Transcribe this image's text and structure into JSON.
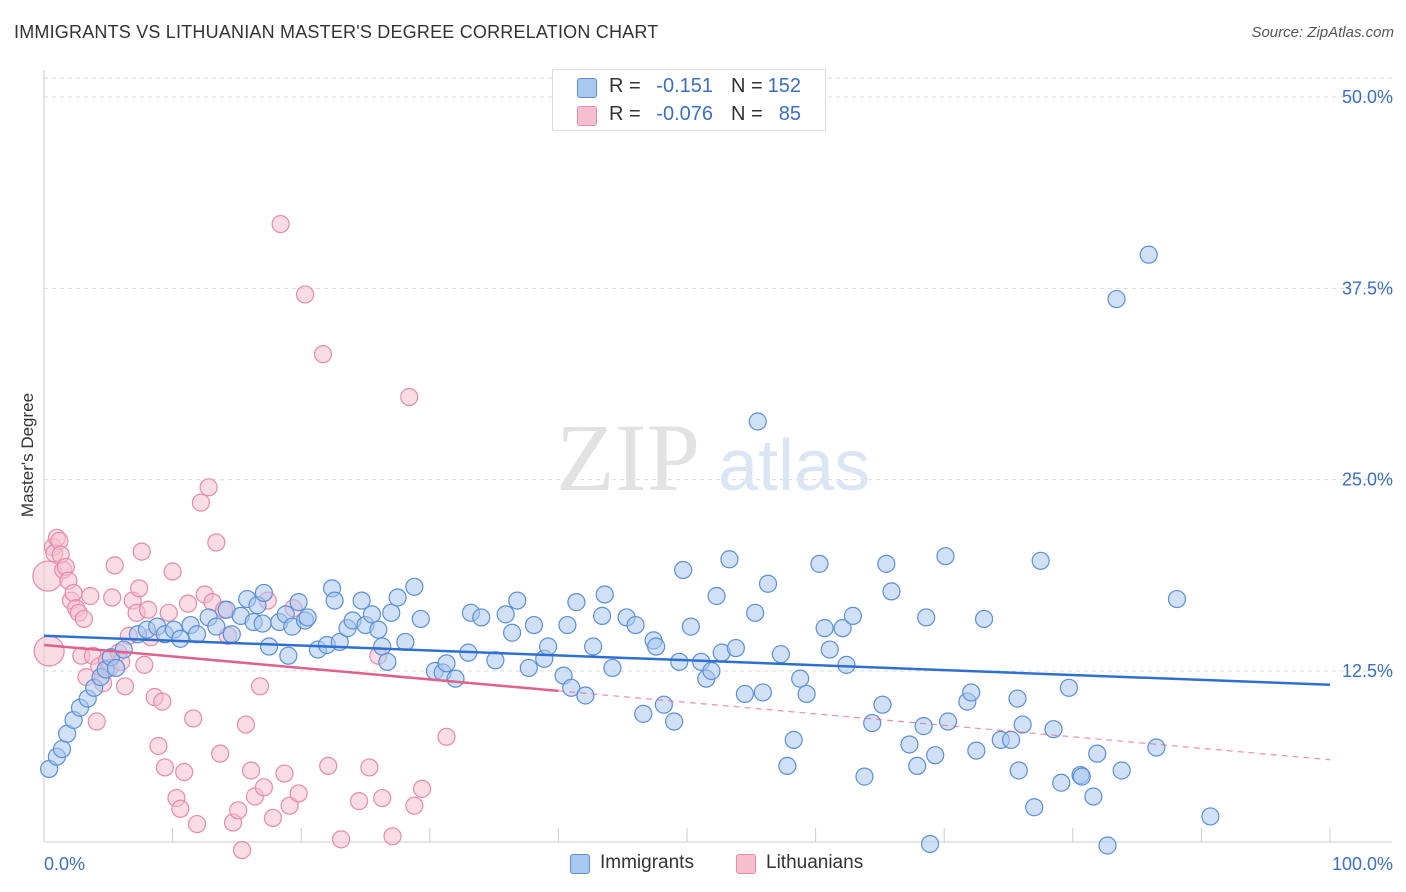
{
  "header": {
    "title": "IMMIGRANTS VS LITHUANIAN MASTER'S DEGREE CORRELATION CHART",
    "source": "Source: ZipAtlas.com"
  },
  "watermark": {
    "zip": "ZIP",
    "atlas": "atlas"
  },
  "legend": {
    "r_label": "R =",
    "n_label": "N =",
    "rows": [
      {
        "series": "Immigrants",
        "r": "-0.151",
        "n": "152",
        "color": "#5b8fd9"
      },
      {
        "series": "Lithuanians",
        "r": "-0.076",
        "n": "85",
        "color": "#e88aa8"
      }
    ]
  },
  "colors": {
    "blue_fill": "#a9c8f0",
    "blue_stroke": "#5b8fd9",
    "blue_line": "#2f6fcf",
    "pink_fill": "#f6bfd0",
    "pink_stroke": "#e88aa8",
    "pink_line": "#e0608e",
    "tick_text": "#3a6fc4",
    "grid": "#d9d9d9"
  },
  "chart_data": {
    "type": "scatter",
    "title": "IMMIGRANTS VS LITHUANIAN MASTER'S DEGREE CORRELATION CHART",
    "xlabel": "",
    "ylabel": "Master's Degree",
    "xlim": [
      0,
      100
    ],
    "ylim": [
      0,
      52
    ],
    "x_tick_labels": [
      "0.0%",
      "100.0%"
    ],
    "y_ticks": [
      12.5,
      25.0,
      37.5,
      50.0
    ],
    "y_tick_labels": [
      "12.5%",
      "25.0%",
      "37.5%",
      "50.0%"
    ],
    "grid": true,
    "legend_position": "top-center",
    "series": [
      {
        "name": "Immigrants",
        "r": -0.151,
        "n": 152,
        "trend": {
          "x": [
            0,
            100
          ],
          "y": [
            14.8,
            11.6
          ]
        },
        "points": [
          [
            0.4,
            6.1
          ],
          [
            1.0,
            6.9
          ],
          [
            1.4,
            7.4
          ],
          [
            1.8,
            8.4
          ],
          [
            2.3,
            9.3
          ],
          [
            2.8,
            10.1
          ],
          [
            3.4,
            10.7
          ],
          [
            3.9,
            11.4
          ],
          [
            4.4,
            12.1
          ],
          [
            4.8,
            12.6
          ],
          [
            5.2,
            13.4
          ],
          [
            5.6,
            12.7
          ],
          [
            6.2,
            13.9
          ],
          [
            7.3,
            14.9
          ],
          [
            8.0,
            15.2
          ],
          [
            8.8,
            15.4
          ],
          [
            9.4,
            14.9
          ],
          [
            10.1,
            15.2
          ],
          [
            10.6,
            14.6
          ],
          [
            11.4,
            15.5
          ],
          [
            11.9,
            14.9
          ],
          [
            12.8,
            16.0
          ],
          [
            13.4,
            15.4
          ],
          [
            14.2,
            16.5
          ],
          [
            14.6,
            14.9
          ],
          [
            15.3,
            16.1
          ],
          [
            15.8,
            17.2
          ],
          [
            16.3,
            15.7
          ],
          [
            16.6,
            16.8
          ],
          [
            17.0,
            15.6
          ],
          [
            17.1,
            17.6
          ],
          [
            17.5,
            14.1
          ],
          [
            18.3,
            15.7
          ],
          [
            18.8,
            16.2
          ],
          [
            19.0,
            13.5
          ],
          [
            19.3,
            15.4
          ],
          [
            19.8,
            17.0
          ],
          [
            20.3,
            15.8
          ],
          [
            20.5,
            16.0
          ],
          [
            21.3,
            13.9
          ],
          [
            22.0,
            14.2
          ],
          [
            22.4,
            17.9
          ],
          [
            22.6,
            17.1
          ],
          [
            23.0,
            14.4
          ],
          [
            23.6,
            15.3
          ],
          [
            24.0,
            15.8
          ],
          [
            24.7,
            17.1
          ],
          [
            25.0,
            15.5
          ],
          [
            25.5,
            16.2
          ],
          [
            26.0,
            15.2
          ],
          [
            26.3,
            14.1
          ],
          [
            26.7,
            13.1
          ],
          [
            27.0,
            16.3
          ],
          [
            27.5,
            17.3
          ],
          [
            28.1,
            14.4
          ],
          [
            28.8,
            18.0
          ],
          [
            29.3,
            15.9
          ],
          [
            30.4,
            12.5
          ],
          [
            31.0,
            12.4
          ],
          [
            31.3,
            13.0
          ],
          [
            32.0,
            12.0
          ],
          [
            33.0,
            13.7
          ],
          [
            33.2,
            16.3
          ],
          [
            34.0,
            16.0
          ],
          [
            35.1,
            13.2
          ],
          [
            35.9,
            16.2
          ],
          [
            36.4,
            15.0
          ],
          [
            36.8,
            17.1
          ],
          [
            37.7,
            12.7
          ],
          [
            38.1,
            15.5
          ],
          [
            38.9,
            13.3
          ],
          [
            39.2,
            14.1
          ],
          [
            40.4,
            12.2
          ],
          [
            40.7,
            15.5
          ],
          [
            41.0,
            11.4
          ],
          [
            41.4,
            17.0
          ],
          [
            42.1,
            10.9
          ],
          [
            42.7,
            14.1
          ],
          [
            43.4,
            16.1
          ],
          [
            43.6,
            17.5
          ],
          [
            44.2,
            12.7
          ],
          [
            45.3,
            16.0
          ],
          [
            46.0,
            15.5
          ],
          [
            46.6,
            9.7
          ],
          [
            47.4,
            14.5
          ],
          [
            47.6,
            14.1
          ],
          [
            48.2,
            10.3
          ],
          [
            49.0,
            9.2
          ],
          [
            49.4,
            13.1
          ],
          [
            49.7,
            19.1
          ],
          [
            50.3,
            15.4
          ],
          [
            51.1,
            13.1
          ],
          [
            51.5,
            12.0
          ],
          [
            51.9,
            12.5
          ],
          [
            52.3,
            17.4
          ],
          [
            52.7,
            13.7
          ],
          [
            53.3,
            19.8
          ],
          [
            53.8,
            14.0
          ],
          [
            54.5,
            11.0
          ],
          [
            55.3,
            16.3
          ],
          [
            55.5,
            28.8
          ],
          [
            55.9,
            11.1
          ],
          [
            56.3,
            18.2
          ],
          [
            57.3,
            13.6
          ],
          [
            57.8,
            6.3
          ],
          [
            58.3,
            8.0
          ],
          [
            58.8,
            12.0
          ],
          [
            59.3,
            11.0
          ],
          [
            60.3,
            19.5
          ],
          [
            60.7,
            15.3
          ],
          [
            61.1,
            13.9
          ],
          [
            62.1,
            15.3
          ],
          [
            62.4,
            12.9
          ],
          [
            62.9,
            16.1
          ],
          [
            63.8,
            5.6
          ],
          [
            64.4,
            9.1
          ],
          [
            65.2,
            10.3
          ],
          [
            65.5,
            19.5
          ],
          [
            65.9,
            17.7
          ],
          [
            67.3,
            7.7
          ],
          [
            67.9,
            6.3
          ],
          [
            68.4,
            8.9
          ],
          [
            68.6,
            16.0
          ],
          [
            69.3,
            7.0
          ],
          [
            70.1,
            20.0
          ],
          [
            70.3,
            9.2
          ],
          [
            71.8,
            10.5
          ],
          [
            72.1,
            11.1
          ],
          [
            72.5,
            7.3
          ],
          [
            73.1,
            15.9
          ],
          [
            74.4,
            8.0
          ],
          [
            75.2,
            8.0
          ],
          [
            75.7,
            10.7
          ],
          [
            76.1,
            9.0
          ],
          [
            77.5,
            19.7
          ],
          [
            78.5,
            8.7
          ],
          [
            79.1,
            5.2
          ],
          [
            79.7,
            11.4
          ],
          [
            80.6,
            5.7
          ],
          [
            80.7,
            5.6
          ],
          [
            81.6,
            4.3
          ],
          [
            81.9,
            7.1
          ],
          [
            82.7,
            1.1
          ],
          [
            83.4,
            36.8
          ],
          [
            83.8,
            6.0
          ],
          [
            85.9,
            39.7
          ],
          [
            88.1,
            17.2
          ],
          [
            90.7,
            3.0
          ],
          [
            68.9,
            1.2
          ],
          [
            75.8,
            6.0
          ],
          [
            77.0,
            3.6
          ],
          [
            86.5,
            7.5
          ]
        ]
      },
      {
        "name": "Lithuanians",
        "r": -0.076,
        "n": 85,
        "trend": {
          "x": [
            0,
            40
          ],
          "y": [
            14.2,
            11.2
          ]
        },
        "trend_dashed": {
          "x": [
            40,
            100
          ],
          "y": [
            11.2,
            6.7
          ]
        },
        "points": [
          [
            0.3,
            18.7
          ],
          [
            0.4,
            13.8
          ],
          [
            0.7,
            20.6
          ],
          [
            0.8,
            20.2
          ],
          [
            1.0,
            21.2
          ],
          [
            1.2,
            21.0
          ],
          [
            1.3,
            20.1
          ],
          [
            1.5,
            19.1
          ],
          [
            1.7,
            19.3
          ],
          [
            1.9,
            18.4
          ],
          [
            2.1,
            17.1
          ],
          [
            2.3,
            17.6
          ],
          [
            2.5,
            16.6
          ],
          [
            2.7,
            16.3
          ],
          [
            2.9,
            13.5
          ],
          [
            3.1,
            15.9
          ],
          [
            3.3,
            12.1
          ],
          [
            3.6,
            17.4
          ],
          [
            3.8,
            13.5
          ],
          [
            4.1,
            9.2
          ],
          [
            4.3,
            12.8
          ],
          [
            4.6,
            11.7
          ],
          [
            4.9,
            13.2
          ],
          [
            5.1,
            12.7
          ],
          [
            5.3,
            17.3
          ],
          [
            5.5,
            19.4
          ],
          [
            5.8,
            13.7
          ],
          [
            6.0,
            13.1
          ],
          [
            6.3,
            11.5
          ],
          [
            6.6,
            14.8
          ],
          [
            6.9,
            17.1
          ],
          [
            7.2,
            16.3
          ],
          [
            7.4,
            17.9
          ],
          [
            7.6,
            20.3
          ],
          [
            7.8,
            12.9
          ],
          [
            8.1,
            16.5
          ],
          [
            8.3,
            14.7
          ],
          [
            8.6,
            10.8
          ],
          [
            8.9,
            7.6
          ],
          [
            9.2,
            10.5
          ],
          [
            9.4,
            6.2
          ],
          [
            9.7,
            16.3
          ],
          [
            10.0,
            19.0
          ],
          [
            10.3,
            4.2
          ],
          [
            10.6,
            3.5
          ],
          [
            10.9,
            5.9
          ],
          [
            11.2,
            16.9
          ],
          [
            11.6,
            9.4
          ],
          [
            11.9,
            2.5
          ],
          [
            12.2,
            23.5
          ],
          [
            12.5,
            17.5
          ],
          [
            12.8,
            24.5
          ],
          [
            13.1,
            17.0
          ],
          [
            13.4,
            20.9
          ],
          [
            13.7,
            7.1
          ],
          [
            14.0,
            16.5
          ],
          [
            14.3,
            14.8
          ],
          [
            14.7,
            2.6
          ],
          [
            15.1,
            3.4
          ],
          [
            15.4,
            0.8
          ],
          [
            15.7,
            9.0
          ],
          [
            16.1,
            6.0
          ],
          [
            16.4,
            4.3
          ],
          [
            16.8,
            11.5
          ],
          [
            17.1,
            4.9
          ],
          [
            17.4,
            17.1
          ],
          [
            17.8,
            2.9
          ],
          [
            18.4,
            41.7
          ],
          [
            18.7,
            5.8
          ],
          [
            19.1,
            3.7
          ],
          [
            19.4,
            16.6
          ],
          [
            19.8,
            4.5
          ],
          [
            20.3,
            37.1
          ],
          [
            21.7,
            33.2
          ],
          [
            22.1,
            6.3
          ],
          [
            23.1,
            1.5
          ],
          [
            24.5,
            4.0
          ],
          [
            25.3,
            6.2
          ],
          [
            26.0,
            13.5
          ],
          [
            26.3,
            4.2
          ],
          [
            27.1,
            1.7
          ],
          [
            28.4,
            30.4
          ],
          [
            28.8,
            3.7
          ],
          [
            29.4,
            4.8
          ],
          [
            31.3,
            8.2
          ]
        ]
      }
    ]
  }
}
